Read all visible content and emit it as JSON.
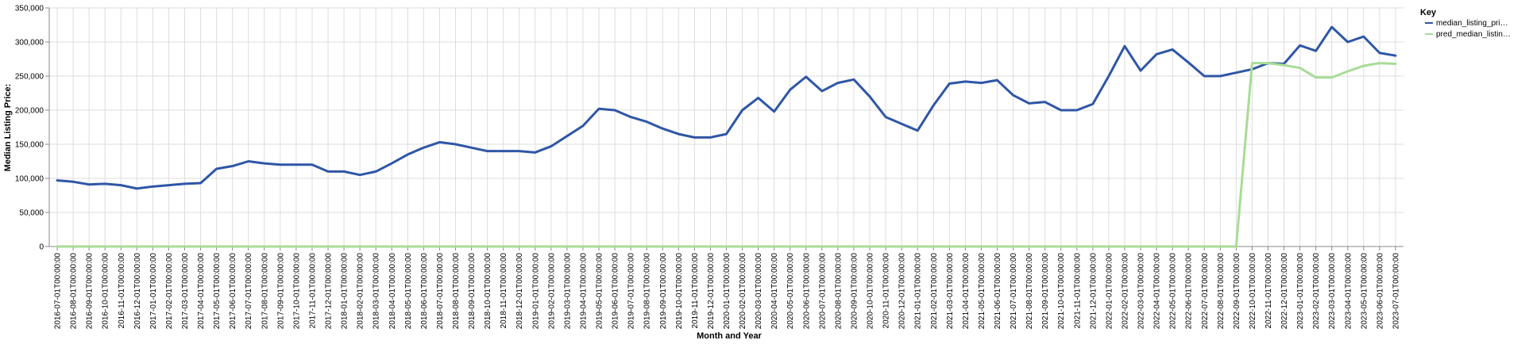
{
  "chart_data": {
    "type": "line",
    "xlabel": "Month and Year",
    "ylabel": "Median Listing Price:",
    "ylim": [
      0,
      350000
    ],
    "yticks": [
      "0",
      "50,000",
      "100,000",
      "150,000",
      "200,000",
      "250,000",
      "300,000",
      "350,000"
    ],
    "grid": true,
    "legend": {
      "title": "Key",
      "placement": "top-right",
      "entries": [
        "median_listing_pri…",
        "pred_median_listin…"
      ]
    },
    "x": [
      "2016-07-01T00:00:00",
      "2016-08-01T00:00:00",
      "2016-09-01T00:00:00",
      "2016-10-01T00:00:00",
      "2016-11-01T00:00:00",
      "2016-12-01T00:00:00",
      "2017-01-01T00:00:00",
      "2017-02-01T00:00:00",
      "2017-03-01T00:00:00",
      "2017-04-01T00:00:00",
      "2017-05-01T00:00:00",
      "2017-06-01T00:00:00",
      "2017-07-01T00:00:00",
      "2017-08-01T00:00:00",
      "2017-09-01T00:00:00",
      "2017-10-01T00:00:00",
      "2017-11-01T00:00:00",
      "2017-12-01T00:00:00",
      "2018-01-01T00:00:00",
      "2018-02-01T00:00:00",
      "2018-03-01T00:00:00",
      "2018-04-01T00:00:00",
      "2018-05-01T00:00:00",
      "2018-06-01T00:00:00",
      "2018-07-01T00:00:00",
      "2018-08-01T00:00:00",
      "2018-09-01T00:00:00",
      "2018-10-01T00:00:00",
      "2018-11-01T00:00:00",
      "2018-12-01T00:00:00",
      "2019-01-01T00:00:00",
      "2019-02-01T00:00:00",
      "2019-03-01T00:00:00",
      "2019-04-01T00:00:00",
      "2019-05-01T00:00:00",
      "2019-06-01T00:00:00",
      "2019-07-01T00:00:00",
      "2019-08-01T00:00:00",
      "2019-09-01T00:00:00",
      "2019-10-01T00:00:00",
      "2019-11-01T00:00:00",
      "2019-12-01T00:00:00",
      "2020-01-01T00:00:00",
      "2020-02-01T00:00:00",
      "2020-03-01T00:00:00",
      "2020-04-01T00:00:00",
      "2020-05-01T00:00:00",
      "2020-06-01T00:00:00",
      "2020-07-01T00:00:00",
      "2020-08-01T00:00:00",
      "2020-09-01T00:00:00",
      "2020-10-01T00:00:00",
      "2020-11-01T00:00:00",
      "2020-12-01T00:00:00",
      "2021-01-01T00:00:00",
      "2021-02-01T00:00:00",
      "2021-03-01T00:00:00",
      "2021-04-01T00:00:00",
      "2021-05-01T00:00:00",
      "2021-06-01T00:00:00",
      "2021-07-01T00:00:00",
      "2021-08-01T00:00:00",
      "2021-09-01T00:00:00",
      "2021-10-01T00:00:00",
      "2021-11-01T00:00:00",
      "2021-12-01T00:00:00",
      "2022-01-01T00:00:00",
      "2022-02-01T00:00:00",
      "2022-03-01T00:00:00",
      "2022-04-01T00:00:00",
      "2022-05-01T00:00:00",
      "2022-06-01T00:00:00",
      "2022-07-01T00:00:00",
      "2022-08-01T00:00:00",
      "2022-09-01T00:00:00",
      "2022-10-01T00:00:00",
      "2022-11-01T00:00:00",
      "2022-12-01T00:00:00",
      "2023-01-01T00:00:00",
      "2023-02-01T00:00:00",
      "2023-03-01T00:00:00",
      "2023-04-01T00:00:00",
      "2023-05-01T00:00:00",
      "2023-06-01T00:00:00",
      "2023-07-01T00:00:00"
    ],
    "series": [
      {
        "name": "median_listing_pri…",
        "color": "#2f56a6",
        "values": [
          97000,
          95000,
          91000,
          92000,
          90000,
          85000,
          88000,
          90000,
          92000,
          93000,
          114000,
          118000,
          125000,
          122000,
          120000,
          120000,
          120000,
          110000,
          110000,
          105000,
          110000,
          122000,
          135000,
          145000,
          153000,
          150000,
          145000,
          140000,
          140000,
          140000,
          138000,
          147000,
          162000,
          177000,
          202000,
          200000,
          190000,
          183000,
          173000,
          165000,
          160000,
          160000,
          165000,
          200000,
          218000,
          198000,
          230000,
          249000,
          228000,
          240000,
          245000,
          220000,
          190000,
          180000,
          170000,
          207000,
          239000,
          242000,
          240000,
          244000,
          222000,
          210000,
          212000,
          200000,
          200000,
          209000,
          250000,
          294000,
          258000,
          282000,
          289000,
          270000,
          250000,
          250000,
          255000,
          260000,
          269000,
          268000,
          295000,
          287000,
          322000,
          300000,
          308000,
          284000,
          280000
        ]
      },
      {
        "name": "pred_median_listin…",
        "color": "#a8dc96",
        "values": [
          0,
          0,
          0,
          0,
          0,
          0,
          0,
          0,
          0,
          0,
          0,
          0,
          0,
          0,
          0,
          0,
          0,
          0,
          0,
          0,
          0,
          0,
          0,
          0,
          0,
          0,
          0,
          0,
          0,
          0,
          0,
          0,
          0,
          0,
          0,
          0,
          0,
          0,
          0,
          0,
          0,
          0,
          0,
          0,
          0,
          0,
          0,
          0,
          0,
          0,
          0,
          0,
          0,
          0,
          0,
          0,
          0,
          0,
          0,
          0,
          0,
          0,
          0,
          0,
          0,
          0,
          0,
          0,
          0,
          0,
          0,
          0,
          0,
          0,
          0,
          269000,
          269000,
          266000,
          262000,
          248000,
          248000,
          257000,
          265000,
          269000,
          268000
        ]
      }
    ]
  }
}
